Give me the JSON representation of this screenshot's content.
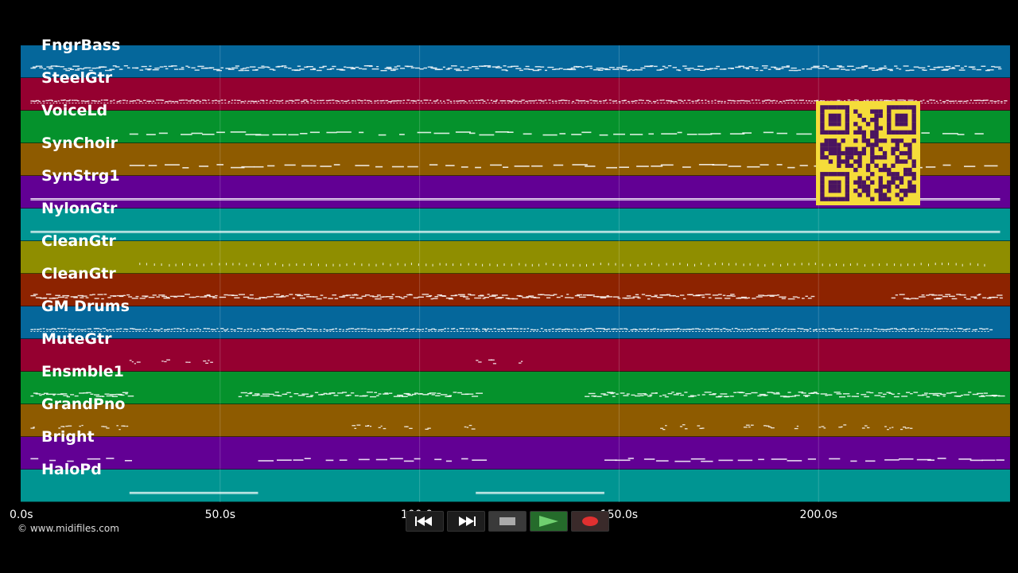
{
  "tracks": [
    {
      "name": "FngrBass",
      "color": "#05679b",
      "pattern": "squiggle",
      "segments": [
        [
          0.01,
          0.99
        ]
      ]
    },
    {
      "name": "SteelGtr",
      "color": "#950030",
      "pattern": "dense",
      "segments": [
        [
          0.01,
          0.995
        ]
      ]
    },
    {
      "name": "VoiceLd",
      "color": "#05922c",
      "pattern": "dash",
      "segments": [
        [
          0.11,
          0.98
        ]
      ]
    },
    {
      "name": "SynChoir",
      "color": "#8e5b00",
      "pattern": "dash",
      "segments": [
        [
          0.11,
          0.98
        ]
      ]
    },
    {
      "name": "SynStrg1",
      "color": "#620094",
      "pattern": "line",
      "segments": [
        [
          0.01,
          0.99
        ]
      ]
    },
    {
      "name": "NylonGtr",
      "color": "#009592",
      "pattern": "line",
      "segments": [
        [
          0.01,
          0.99
        ]
      ]
    },
    {
      "name": "CleanGtr",
      "color": "#8f8e00",
      "pattern": "dots",
      "segments": [
        [
          0.12,
          0.98
        ]
      ]
    },
    {
      "name": "CleanGtr",
      "color": "#8d2300",
      "pattern": "squiggle",
      "segments": [
        [
          0.01,
          0.8
        ],
        [
          0.88,
          0.99
        ]
      ]
    },
    {
      "name": "GM Drums",
      "color": "#05679b",
      "pattern": "dense",
      "segments": [
        [
          0.01,
          0.46
        ],
        [
          0.46,
          0.81
        ],
        [
          0.81,
          0.98
        ]
      ]
    },
    {
      "name": "MuteGtr",
      "color": "#950030",
      "pattern": "sparse",
      "segments": [
        [
          0.11,
          0.19
        ],
        [
          0.46,
          0.54
        ]
      ]
    },
    {
      "name": "Ensmble1",
      "color": "#05922c",
      "pattern": "squiggle",
      "segments": [
        [
          0.01,
          0.11
        ],
        [
          0.22,
          0.46
        ],
        [
          0.57,
          0.99
        ]
      ]
    },
    {
      "name": "GrandPno",
      "color": "#8e5b00",
      "pattern": "sparse",
      "segments": [
        [
          0.01,
          0.11
        ],
        [
          0.23,
          0.46
        ],
        [
          0.58,
          0.98
        ]
      ]
    },
    {
      "name": "Bright",
      "color": "#620094",
      "pattern": "dash",
      "segments": [
        [
          0.01,
          0.11
        ],
        [
          0.24,
          0.46
        ],
        [
          0.59,
          0.99
        ]
      ]
    },
    {
      "name": "HaloPd",
      "color": "#009592",
      "pattern": "line",
      "segments": [
        [
          0.11,
          0.24
        ],
        [
          0.46,
          0.59
        ]
      ]
    }
  ],
  "axis": {
    "ticks": [
      {
        "label": "0.0s",
        "value": 0
      },
      {
        "label": "50.0s",
        "value": 50
      },
      {
        "label": "100.0s",
        "value": 100
      },
      {
        "label": "150.0s",
        "value": 150
      },
      {
        "label": "200.0s",
        "value": 200
      }
    ],
    "max_seconds": 248
  },
  "copyright": "© www.midifiles.com",
  "controls": [
    {
      "name": "rewind-button",
      "icon": "rewind-icon"
    },
    {
      "name": "fast-forward-button",
      "icon": "fast-forward-icon"
    },
    {
      "name": "stop-button",
      "icon": "stop-icon"
    },
    {
      "name": "play-button",
      "icon": "play-icon"
    },
    {
      "name": "record-button",
      "icon": "record-icon"
    }
  ],
  "qr_code": {
    "icon": "qr-code-icon",
    "fg": "#4a1460",
    "bg": "#f5dc3a"
  }
}
